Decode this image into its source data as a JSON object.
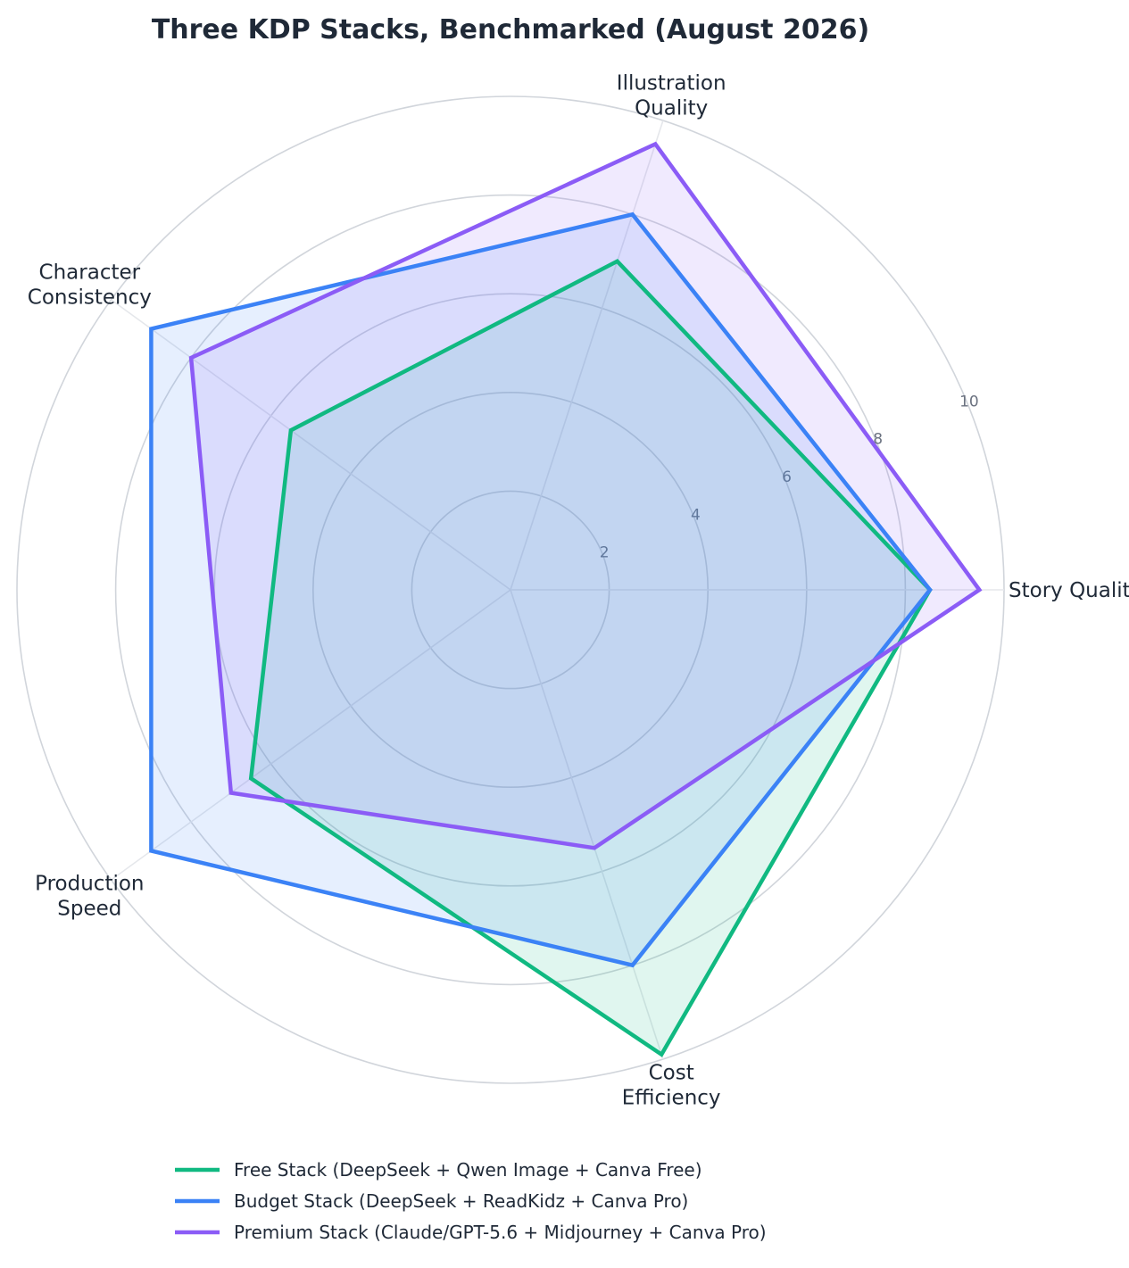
{
  "chart_data": {
    "type": "radar",
    "title": "Three KDP Stacks, Benchmarked (August 2026)",
    "axes": [
      "Story Quality",
      "Illustration Quality",
      "Character Consistency",
      "Production Speed",
      "Cost Efficiency"
    ],
    "axis_label_lines": [
      [
        "Story Quality"
      ],
      [
        "Illustration",
        "Quality"
      ],
      [
        "Character",
        "Consistency"
      ],
      [
        "Production",
        "Speed"
      ],
      [
        "Cost",
        "Efficiency"
      ]
    ],
    "rlim": [
      0,
      10
    ],
    "rticks": [
      2,
      4,
      6,
      8,
      10
    ],
    "rtick_labels": [
      "2",
      "4",
      "6",
      "8",
      "10"
    ],
    "grid": true,
    "legend_placement": "bottom-center",
    "series": [
      {
        "name": "Free Stack (DeepSeek + Qwen Image + Canva Free)",
        "color": "#10b981",
        "values": [
          8.5,
          7.0,
          5.5,
          6.5,
          9.9
        ]
      },
      {
        "name": "Budget Stack (DeepSeek + ReadKidz + Canva Pro)",
        "color": "#3b82f6",
        "values": [
          8.5,
          8.0,
          9.0,
          9.0,
          8.0
        ]
      },
      {
        "name": "Premium Stack (Claude/GPT-5.6 + Midjourney + Canva Pro)",
        "color": "#8b5cf6",
        "values": [
          9.5,
          9.5,
          8.0,
          7.0,
          5.5
        ]
      }
    ]
  }
}
